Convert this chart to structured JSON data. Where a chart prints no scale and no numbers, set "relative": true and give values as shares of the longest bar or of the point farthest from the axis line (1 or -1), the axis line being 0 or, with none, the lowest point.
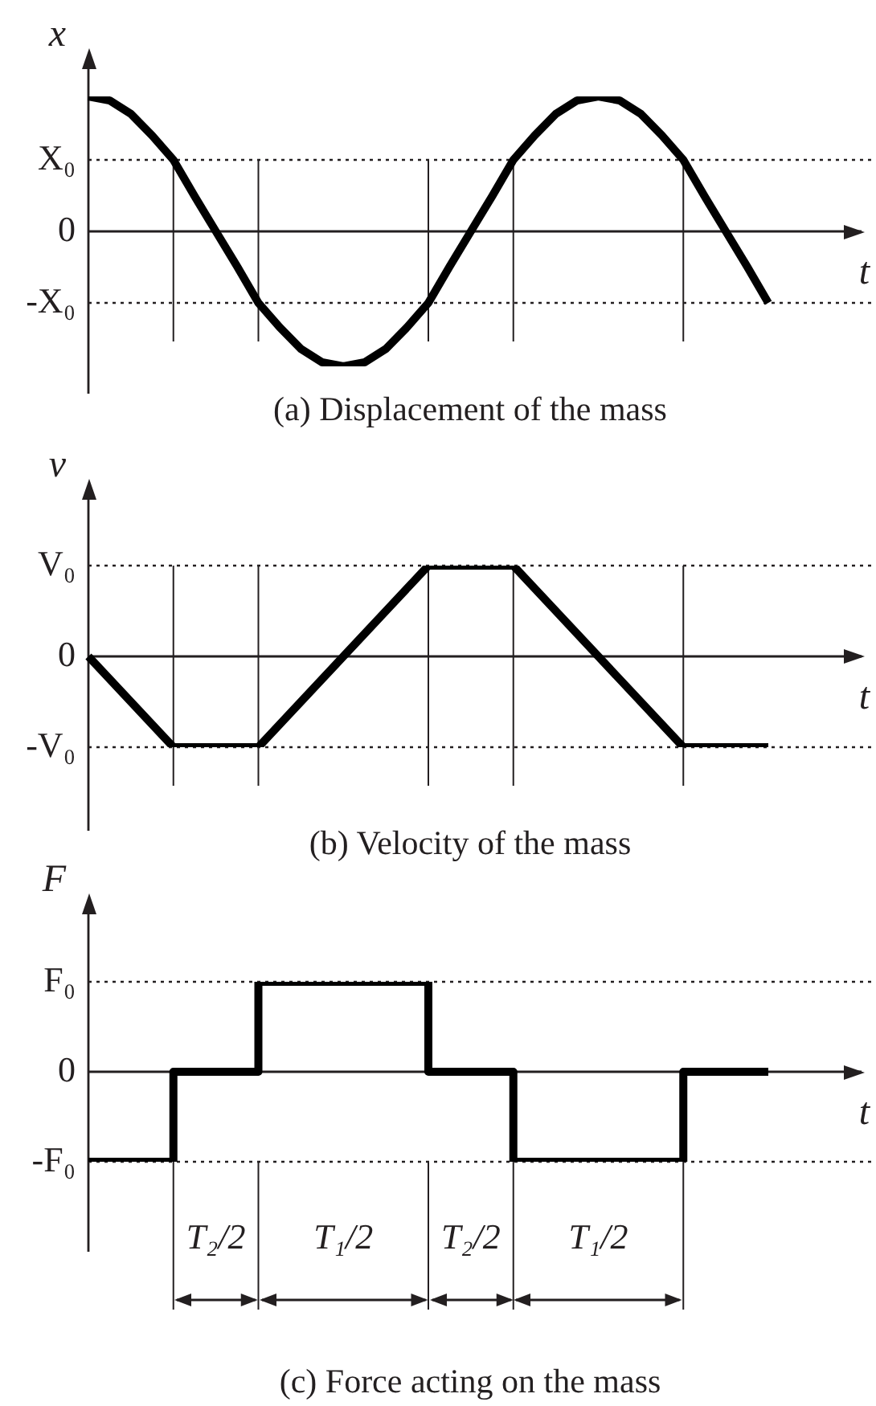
{
  "chart_data": [
    {
      "type": "line",
      "title": "(a) Displacement of the mass",
      "xlabel": "t",
      "ylabel": "x",
      "marker": "none",
      "grid": "x",
      "tick_labels": false,
      "relative": true,
      "categories": [
        null,
        null,
        null,
        null,
        null,
        null,
        null,
        null,
        null,
        null,
        null,
        null,
        null,
        null,
        null,
        null,
        null,
        null,
        null,
        null,
        null,
        null,
        null,
        null,
        null,
        null,
        null,
        null,
        null,
        null,
        null,
        null,
        null
      ],
      "series": [
        {
          "color": "#000000",
          "values": [
            1,
            0.97,
            0.87,
            0.71,
            0.53,
            0.26,
            0,
            -0.26,
            -0.53,
            -0.71,
            -0.87,
            -0.97,
            -1,
            -0.97,
            -0.87,
            -0.71,
            -0.53,
            -0.26,
            0,
            0.26,
            0.53,
            0.71,
            0.87,
            0.97,
            1,
            0.97,
            0.87,
            0.71,
            0.53,
            0.26,
            0,
            -0.26,
            -0.53
          ]
        }
      ],
      "ref_lines": [
        {
          "axis": "y",
          "value": 0.53,
          "label": "X₀",
          "line_style": "dotted"
        },
        {
          "axis": "y",
          "value": 0,
          "label": "0",
          "line_style": "solid"
        },
        {
          "axis": "y",
          "value": -0.53,
          "label": "-X₀",
          "line_style": "dotted"
        }
      ]
    },
    {
      "type": "line",
      "title": "(b) Velocity of the mass",
      "xlabel": "t",
      "ylabel": "v",
      "marker": "none",
      "grid": "x",
      "tick_labels": false,
      "relative": true,
      "categories": [
        null,
        null,
        null,
        null,
        null,
        null,
        null,
        null,
        null
      ],
      "series": [
        {
          "color": "#000000",
          "values": [
            0,
            -1,
            -1,
            0,
            1,
            1,
            0,
            -1,
            -1
          ]
        }
      ],
      "ref_lines": [
        {
          "axis": "y",
          "value": 1,
          "label": "V₀",
          "line_style": "dotted"
        },
        {
          "axis": "y",
          "value": 0,
          "label": "0",
          "line_style": "solid"
        },
        {
          "axis": "y",
          "value": -1,
          "label": "-V₀",
          "line_style": "dotted"
        }
      ]
    },
    {
      "type": "step",
      "title": "(c) Force acting on the mass",
      "xlabel": "t",
      "ylabel": "F",
      "marker": "none",
      "tick_labels": false,
      "relative": true,
      "categories": [
        null,
        null,
        null,
        null,
        null,
        null,
        null,
        null,
        null
      ],
      "series": [
        {
          "color": "#000000",
          "values": [
            -1,
            0,
            1,
            1,
            0,
            -1,
            -1,
            0,
            0
          ]
        }
      ],
      "ref_lines": [
        {
          "axis": "y",
          "value": 1,
          "label": "F₀",
          "line_style": "dotted"
        },
        {
          "axis": "y",
          "value": 0,
          "label": "0",
          "line_style": "solid"
        },
        {
          "axis": "y",
          "value": -1,
          "label": "-F₀",
          "line_style": "dotted"
        }
      ],
      "annotations": [
        "T₂/2",
        "T₁/2",
        "T₂/2",
        "T₁/2"
      ]
    }
  ]
}
